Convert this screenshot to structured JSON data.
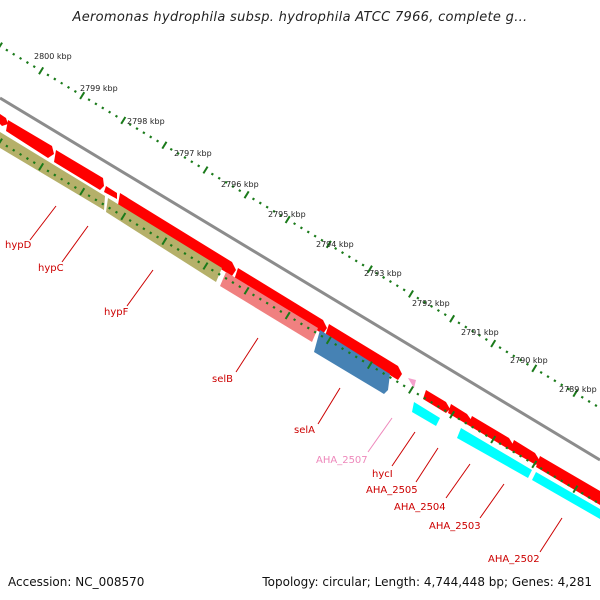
{
  "title": "Aeromonas hydrophila subsp. hydrophila ATCC 7966, complete g...",
  "accession": "Accession: NC_008570",
  "topology": "Topology: circular; Length: 4,744,448 bp; Genes: 4,281",
  "colors": {
    "backbone": "#8c8c8c",
    "forward_gene": "#ff0000",
    "cds_dim": "#b5b06a",
    "cds_pink": "#f08080",
    "cds_blue": "#4682b4",
    "cds_cyan": "#00ffff",
    "label_red": "#cc0000",
    "label_pink": "#ee88bb",
    "tick_green": "#1a7a1a"
  },
  "ticks": [
    {
      "label": "2800 kbp"
    },
    {
      "label": "2799 kbp"
    },
    {
      "label": "2798 kbp"
    },
    {
      "label": "2797 kbp"
    },
    {
      "label": "2796 kbp"
    },
    {
      "label": "2795 kbp"
    },
    {
      "label": "2794 kbp"
    },
    {
      "label": "2793 kbp"
    },
    {
      "label": "2792 kbp"
    },
    {
      "label": "2791 kbp"
    },
    {
      "label": "2790 kbp"
    },
    {
      "label": "2789 kbp"
    }
  ],
  "gene_labels": [
    {
      "name": "hypD",
      "color": "label_red"
    },
    {
      "name": "hypC",
      "color": "label_red"
    },
    {
      "name": "hypF",
      "color": "label_red"
    },
    {
      "name": "selB",
      "color": "label_red"
    },
    {
      "name": "selA",
      "color": "label_red"
    },
    {
      "name": "AHA_2507",
      "color": "label_pink"
    },
    {
      "name": "hycI",
      "color": "label_red"
    },
    {
      "name": "AHA_2505",
      "color": "label_red"
    },
    {
      "name": "AHA_2504",
      "color": "label_red"
    },
    {
      "name": "AHA_2503",
      "color": "label_red"
    },
    {
      "name": "AHA_2502",
      "color": "label_red"
    }
  ]
}
